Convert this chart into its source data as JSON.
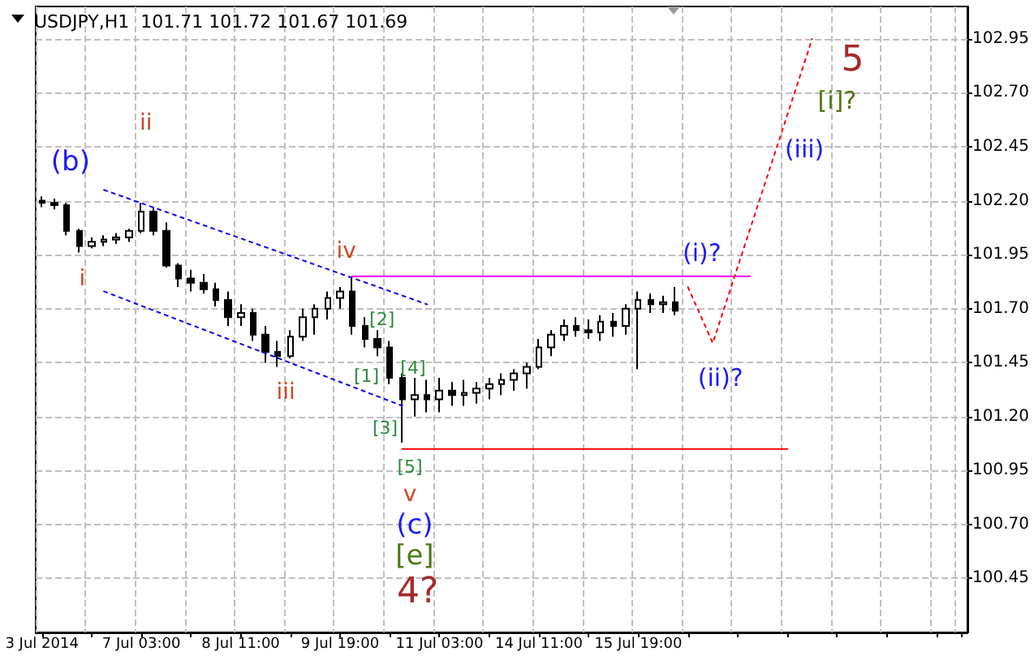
{
  "chart_data": {
    "type": "candlestick",
    "title": "USDJPY,H1  101.71 101.72 101.67 101.69",
    "color": "#000000",
    "categories": [
      "3 Jul 2014",
      null,
      null,
      null,
      null,
      null,
      null,
      null,
      "7 Jul 03:00",
      null,
      null,
      null,
      null,
      null,
      null,
      null,
      "8 Jul 11:00",
      null,
      null,
      null,
      null,
      null,
      null,
      null,
      "9 Jul 19:00",
      null,
      null,
      null,
      null,
      null,
      null,
      null,
      "11 Jul 03:00",
      null,
      null,
      null,
      null,
      null,
      null,
      null,
      "14 Jul 11:00",
      null,
      null,
      null,
      null,
      null,
      null,
      null,
      "15 Jul 19:00",
      null,
      null,
      null,
      null,
      null,
      null,
      null,
      null,
      null,
      null,
      null,
      null,
      null,
      null,
      null,
      null,
      null,
      null,
      null,
      null,
      null,
      null,
      null,
      null,
      null,
      null
    ],
    "ohlc": [
      [
        102.2,
        102.22,
        102.17,
        102.19
      ],
      [
        102.19,
        102.21,
        102.16,
        102.18
      ],
      [
        102.18,
        102.19,
        102.04,
        102.06
      ],
      [
        102.06,
        102.07,
        101.96,
        101.99
      ],
      [
        101.99,
        102.03,
        101.98,
        102.01
      ],
      [
        102.01,
        102.04,
        101.99,
        102.02
      ],
      [
        102.02,
        102.05,
        102.0,
        102.03
      ],
      [
        102.03,
        102.07,
        102.01,
        102.06
      ],
      [
        102.06,
        102.19,
        102.05,
        102.15
      ],
      [
        102.15,
        102.17,
        102.04,
        102.06
      ],
      [
        102.06,
        102.1,
        101.89,
        101.9
      ],
      [
        101.9,
        101.91,
        101.8,
        101.84
      ],
      [
        101.84,
        101.88,
        101.78,
        101.82
      ],
      [
        101.82,
        101.86,
        101.77,
        101.79
      ],
      [
        101.79,
        101.82,
        101.71,
        101.74
      ],
      [
        101.74,
        101.78,
        101.62,
        101.66
      ],
      [
        101.66,
        101.72,
        101.62,
        101.68
      ],
      [
        101.68,
        101.7,
        101.55,
        101.58
      ],
      [
        101.58,
        101.62,
        101.45,
        101.5
      ],
      [
        101.5,
        101.55,
        101.43,
        101.48
      ],
      [
        101.48,
        101.6,
        101.47,
        101.57
      ],
      [
        101.57,
        101.7,
        101.55,
        101.66
      ],
      [
        101.66,
        101.72,
        101.58,
        101.7
      ],
      [
        101.7,
        101.78,
        101.65,
        101.75
      ],
      [
        101.75,
        101.8,
        101.7,
        101.78
      ],
      [
        101.78,
        101.85,
        101.58,
        101.62
      ],
      [
        101.62,
        101.66,
        101.52,
        101.56
      ],
      [
        101.56,
        101.6,
        101.48,
        101.52
      ],
      [
        101.52,
        101.55,
        101.35,
        101.38
      ],
      [
        101.38,
        101.4,
        101.08,
        101.28
      ],
      [
        101.28,
        101.38,
        101.2,
        101.3
      ],
      [
        101.3,
        101.37,
        101.22,
        101.28
      ],
      [
        101.28,
        101.38,
        101.22,
        101.32
      ],
      [
        101.32,
        101.36,
        101.25,
        101.3
      ],
      [
        101.3,
        101.37,
        101.25,
        101.31
      ],
      [
        101.31,
        101.36,
        101.26,
        101.33
      ],
      [
        101.33,
        101.38,
        101.28,
        101.35
      ],
      [
        101.35,
        101.4,
        101.3,
        101.37
      ],
      [
        101.37,
        101.42,
        101.32,
        101.4
      ],
      [
        101.4,
        101.45,
        101.33,
        101.43
      ],
      [
        101.43,
        101.56,
        101.42,
        101.52
      ],
      [
        101.52,
        101.6,
        101.48,
        101.58
      ],
      [
        101.58,
        101.65,
        101.55,
        101.62
      ],
      [
        101.62,
        101.66,
        101.57,
        101.6
      ],
      [
        101.6,
        101.65,
        101.56,
        101.59
      ],
      [
        101.59,
        101.67,
        101.55,
        101.64
      ],
      [
        101.64,
        101.68,
        101.57,
        101.62
      ],
      [
        101.62,
        101.72,
        101.58,
        101.7
      ],
      [
        101.7,
        101.78,
        101.42,
        101.74
      ],
      [
        101.74,
        101.77,
        101.68,
        101.72
      ],
      [
        101.72,
        101.76,
        101.68,
        101.73
      ],
      [
        101.73,
        101.8,
        101.67,
        101.69
      ],
      null,
      null,
      null,
      null,
      null,
      null,
      null,
      null,
      null,
      null,
      null,
      null,
      null,
      null,
      null,
      null,
      null,
      null,
      null,
      null,
      null,
      null,
      null
    ],
    "series": [
      {
        "type": "line",
        "color": "#0000ff",
        "line_style": "dotted",
        "values": [
          null,
          null,
          null,
          null,
          null,
          102.25,
          null,
          null,
          null,
          null,
          null,
          null,
          null,
          null,
          null,
          null,
          null,
          null,
          null,
          null,
          null,
          null,
          null,
          null,
          null,
          null,
          null,
          null,
          null,
          null,
          null,
          101.72,
          null,
          null,
          null,
          null,
          null,
          null,
          null,
          null,
          null,
          null,
          null,
          null,
          null,
          null,
          null,
          null,
          null,
          null,
          null,
          null,
          null,
          null,
          null,
          null,
          null,
          null,
          null,
          null,
          null,
          null,
          null,
          null,
          null,
          null,
          null,
          null,
          null,
          null,
          null,
          null,
          null,
          null,
          null
        ]
      },
      {
        "type": "line",
        "color": "#0000ff",
        "line_style": "dotted",
        "values": [
          null,
          null,
          null,
          null,
          null,
          101.78,
          null,
          null,
          null,
          null,
          null,
          null,
          null,
          null,
          null,
          null,
          null,
          null,
          null,
          null,
          null,
          null,
          null,
          null,
          null,
          null,
          null,
          null,
          null,
          101.25,
          null,
          null,
          null,
          null,
          null,
          null,
          null,
          null,
          null,
          null,
          null,
          null,
          null,
          null,
          null,
          null,
          null,
          null,
          null,
          null,
          null,
          null,
          null,
          null,
          null,
          null,
          null,
          null,
          null,
          null,
          null,
          null,
          null,
          null,
          null,
          null,
          null,
          null,
          null,
          null,
          null,
          null,
          null,
          null,
          null
        ]
      },
      {
        "type": "line",
        "color": "#ff00ff",
        "line_style": "solid",
        "values": [
          null,
          null,
          null,
          null,
          null,
          null,
          null,
          null,
          null,
          null,
          null,
          null,
          null,
          null,
          null,
          null,
          null,
          null,
          null,
          null,
          null,
          null,
          null,
          null,
          null,
          101.85,
          null,
          null,
          null,
          null,
          null,
          null,
          null,
          null,
          null,
          null,
          null,
          null,
          null,
          null,
          null,
          null,
          null,
          null,
          null,
          null,
          null,
          null,
          null,
          null,
          null,
          null,
          null,
          null,
          null,
          null,
          null,
          101.85,
          null,
          null,
          null,
          null,
          null,
          null,
          null,
          null,
          null,
          null,
          null,
          null,
          null,
          null,
          null,
          null,
          null
        ]
      },
      {
        "type": "line",
        "color": "#ff0000",
        "line_style": "solid",
        "values": [
          null,
          null,
          null,
          null,
          null,
          null,
          null,
          null,
          null,
          null,
          null,
          null,
          null,
          null,
          null,
          null,
          null,
          null,
          null,
          null,
          null,
          null,
          null,
          null,
          null,
          null,
          null,
          null,
          null,
          101.05,
          null,
          null,
          null,
          null,
          null,
          null,
          null,
          null,
          null,
          null,
          null,
          null,
          null,
          null,
          null,
          null,
          null,
          null,
          null,
          null,
          null,
          null,
          null,
          null,
          null,
          null,
          null,
          null,
          null,
          null,
          101.05,
          null,
          null,
          null,
          null,
          null,
          null,
          null,
          null,
          null,
          null,
          null,
          null,
          null,
          null
        ]
      },
      {
        "type": "line",
        "color": "#ff0000",
        "line_style": "dotted",
        "values": [
          null,
          null,
          null,
          null,
          null,
          null,
          null,
          null,
          null,
          null,
          null,
          null,
          null,
          null,
          null,
          null,
          null,
          null,
          null,
          null,
          null,
          null,
          null,
          null,
          null,
          null,
          null,
          null,
          null,
          null,
          null,
          null,
          null,
          null,
          null,
          null,
          null,
          null,
          null,
          null,
          null,
          null,
          null,
          null,
          null,
          null,
          null,
          null,
          null,
          null,
          null,
          null,
          101.8,
          null,
          101.54,
          null,
          null,
          null,
          null,
          null,
          null,
          null,
          102.95,
          null,
          null,
          null,
          null,
          null,
          null,
          null,
          null,
          null,
          null,
          null,
          null
        ]
      }
    ],
    "annotations": [
      "(b)",
      "ii",
      "i",
      "iv",
      "iii",
      "[2]",
      "[1]",
      "[4]",
      "[3]",
      "[5]",
      "v",
      "(c)",
      "[e]",
      "4?",
      "5",
      "[i]?",
      "(iii)",
      "(i)?",
      "(ii)?"
    ],
    "ylim": [
      100.2,
      103.1
    ],
    "yticks": [
      100.45,
      {
        "value": 100.7,
        "label": "100.70"
      },
      100.95,
      {
        "value": 101.2,
        "label": "101.20"
      },
      101.45,
      {
        "value": 101.7,
        "label": "101.70"
      },
      101.95,
      {
        "value": 102.2,
        "label": "102.20"
      },
      102.45,
      {
        "value": 102.7,
        "label": "102.70"
      },
      102.95
    ],
    "grid": true
  }
}
